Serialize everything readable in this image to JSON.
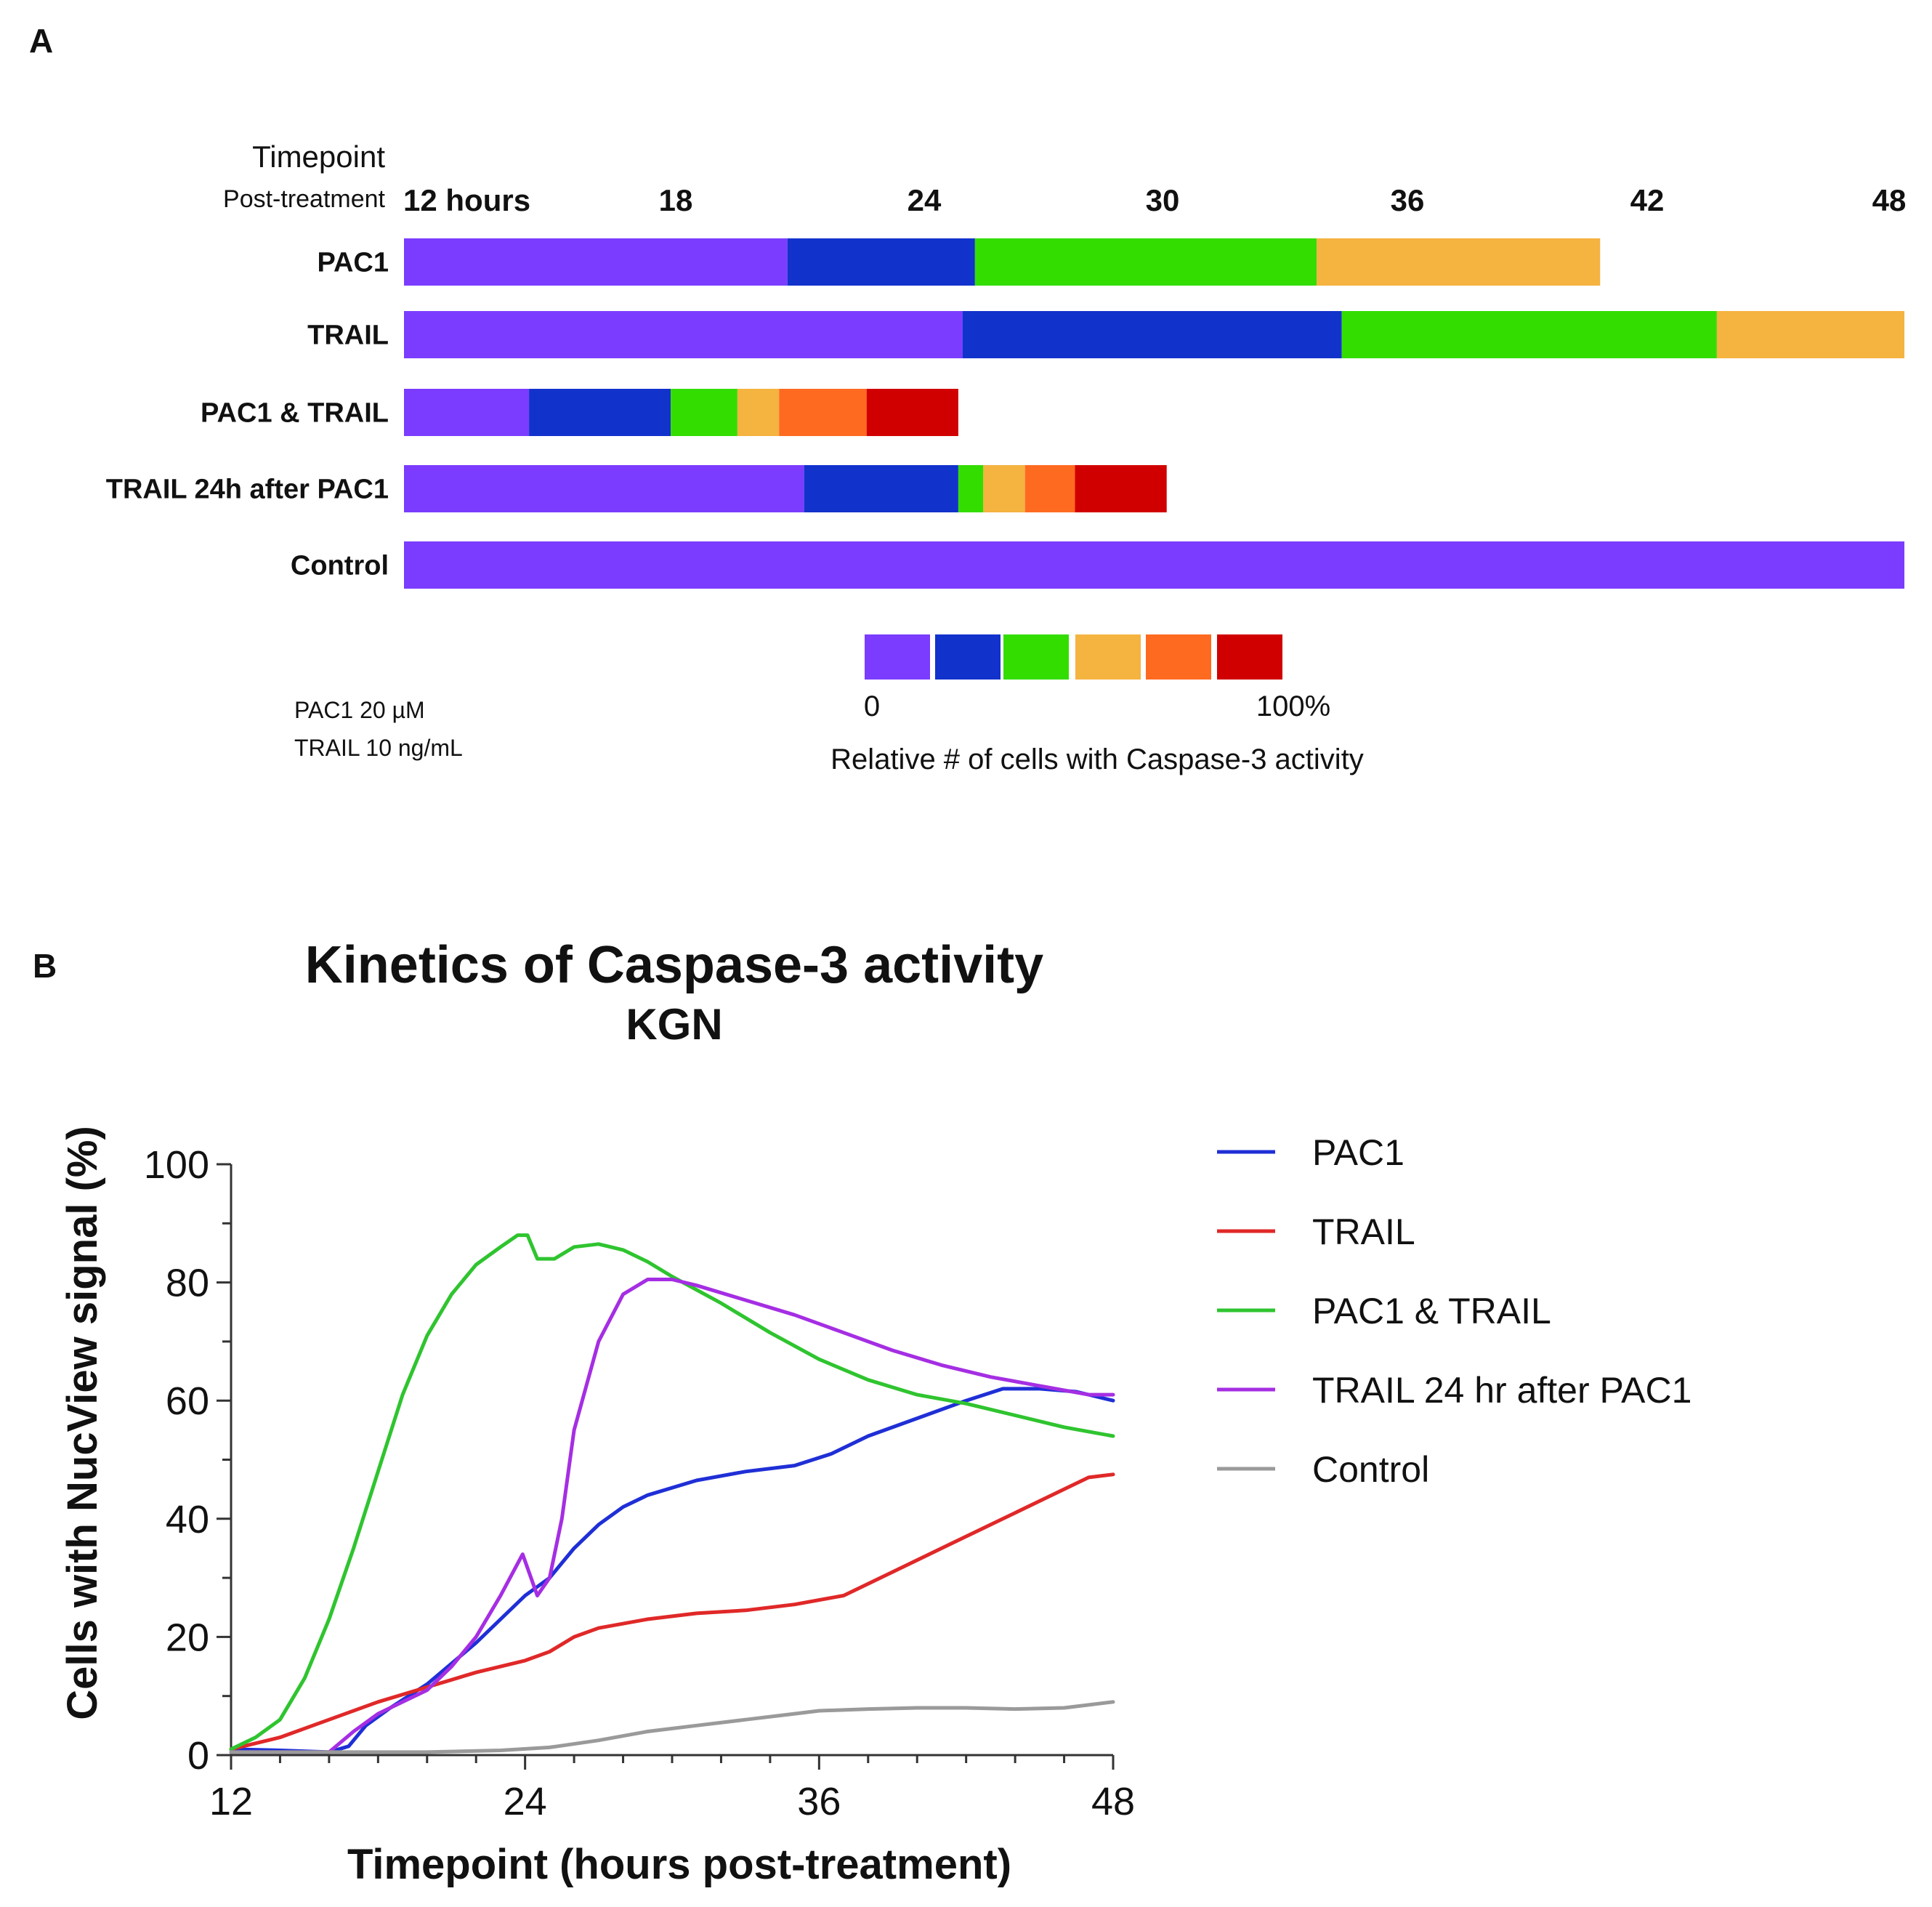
{
  "panel_a": {
    "letter": "A",
    "timepoint_label": "Timepoint",
    "post_treatment_label": "Post-treatment",
    "first_tick_label": "12 hours",
    "tick_labels": [
      "18",
      "24",
      "30",
      "36",
      "42",
      "48"
    ],
    "scale_min_label": "0",
    "scale_max_label": "100%",
    "scale_caption": "Relative # of cells with Caspase-3 activity",
    "dose_pac1": "PAC1 20 µM",
    "dose_trail": "TRAIL 10 ng/mL",
    "palette": [
      "#7b3cff",
      "#1232cc",
      "#33dd00",
      "#f5b340",
      "#ff6a21",
      "#d10000"
    ]
  },
  "panel_b": {
    "letter": "B",
    "title": "Kinetics of Caspase-3 activity",
    "subtitle": "KGN"
  },
  "chart_data": [
    {
      "type": "bar",
      "orientation": "horizontal-stacked",
      "title": "Timepoint Post-treatment",
      "x_unit": "hours post-treatment",
      "xlim": [
        12,
        48
      ],
      "x_ticks": [
        12,
        18,
        24,
        30,
        36,
        42,
        48
      ],
      "color_scale": {
        "min": "0",
        "max": "100%",
        "label": "Relative # of cells with Caspase-3 activity"
      },
      "rows": [
        {
          "label": "PAC1",
          "segments": [
            {
              "from": 12,
              "to": 21.2,
              "level": 0
            },
            {
              "from": 21.2,
              "to": 25.7,
              "level": 1
            },
            {
              "from": 25.7,
              "to": 33.9,
              "level": 2
            },
            {
              "from": 33.9,
              "to": 40.7,
              "level": 3
            }
          ]
        },
        {
          "label": "TRAIL",
          "segments": [
            {
              "from": 12,
              "to": 25.4,
              "level": 0
            },
            {
              "from": 25.4,
              "to": 34.5,
              "level": 1
            },
            {
              "from": 34.5,
              "to": 43.5,
              "level": 2
            },
            {
              "from": 43.5,
              "to": 48,
              "level": 3
            }
          ]
        },
        {
          "label": "PAC1 & TRAIL",
          "segments": [
            {
              "from": 12,
              "to": 15,
              "level": 0
            },
            {
              "from": 15,
              "to": 18.4,
              "level": 1
            },
            {
              "from": 18.4,
              "to": 20,
              "level": 2
            },
            {
              "from": 20,
              "to": 21,
              "level": 3
            },
            {
              "from": 21,
              "to": 23.1,
              "level": 4
            },
            {
              "from": 23.1,
              "to": 25.3,
              "level": 5
            }
          ]
        },
        {
          "label": "TRAIL 24h after PAC1",
          "segments": [
            {
              "from": 12,
              "to": 21.6,
              "level": 0
            },
            {
              "from": 21.6,
              "to": 25.3,
              "level": 1
            },
            {
              "from": 25.3,
              "to": 25.9,
              "level": 2
            },
            {
              "from": 25.9,
              "to": 26.9,
              "level": 3
            },
            {
              "from": 26.9,
              "to": 28.1,
              "level": 4
            },
            {
              "from": 28.1,
              "to": 30.3,
              "level": 5
            }
          ]
        },
        {
          "label": "Control",
          "segments": [
            {
              "from": 12,
              "to": 48,
              "level": 0
            }
          ]
        }
      ]
    },
    {
      "type": "line",
      "title": "Kinetics of Caspase-3 activity",
      "subtitle": "KGN",
      "xlabel": "Timepoint (hours post-treatment)",
      "ylabel": "Cells with NucView signal (%)",
      "xlim": [
        12,
        48
      ],
      "ylim": [
        0,
        100
      ],
      "x_ticks": [
        12,
        24,
        36,
        48
      ],
      "y_ticks": [
        0,
        20,
        40,
        60,
        80,
        100
      ],
      "legend_position": "right",
      "series": [
        {
          "name": "PAC1",
          "color": "#1f2fd6",
          "points": [
            [
              12,
              1
            ],
            [
              14,
              0.8
            ],
            [
              16,
              0.5
            ],
            [
              16.8,
              1.5
            ],
            [
              17.5,
              5
            ],
            [
              18.5,
              8
            ],
            [
              20,
              12
            ],
            [
              22,
              19
            ],
            [
              24,
              27
            ],
            [
              25,
              30
            ],
            [
              26,
              35
            ],
            [
              27,
              39
            ],
            [
              28,
              42
            ],
            [
              29,
              44
            ],
            [
              31,
              46.5
            ],
            [
              33,
              48
            ],
            [
              35,
              49
            ],
            [
              36.5,
              51
            ],
            [
              38,
              54
            ],
            [
              40,
              57
            ],
            [
              42,
              60
            ],
            [
              43.5,
              62
            ],
            [
              45,
              62
            ],
            [
              46.5,
              61.5
            ],
            [
              48,
              60
            ]
          ]
        },
        {
          "name": "TRAIL",
          "color": "#e02828",
          "points": [
            [
              12,
              1
            ],
            [
              14,
              3
            ],
            [
              16,
              6
            ],
            [
              18,
              9
            ],
            [
              20,
              11.5
            ],
            [
              22,
              14
            ],
            [
              24,
              16
            ],
            [
              25,
              17.5
            ],
            [
              26,
              20
            ],
            [
              27,
              21.5
            ],
            [
              29,
              23
            ],
            [
              31,
              24
            ],
            [
              33,
              24.5
            ],
            [
              35,
              25.5
            ],
            [
              37,
              27
            ],
            [
              39,
              31
            ],
            [
              41,
              35
            ],
            [
              43,
              39
            ],
            [
              45,
              43
            ],
            [
              47,
              47
            ],
            [
              48,
              47.5
            ]
          ]
        },
        {
          "name": "PAC1 & TRAIL",
          "color": "#2fc42f",
          "points": [
            [
              12,
              1
            ],
            [
              13,
              3
            ],
            [
              14,
              6
            ],
            [
              15,
              13
            ],
            [
              16,
              23
            ],
            [
              17,
              35
            ],
            [
              18,
              48
            ],
            [
              19,
              61
            ],
            [
              20,
              71
            ],
            [
              21,
              78
            ],
            [
              22,
              83
            ],
            [
              23,
              86
            ],
            [
              23.7,
              88
            ],
            [
              24.1,
              88
            ],
            [
              24.5,
              84
            ],
            [
              25.2,
              84
            ],
            [
              26,
              86
            ],
            [
              27,
              86.5
            ],
            [
              28,
              85.5
            ],
            [
              29,
              83.5
            ],
            [
              30,
              81
            ],
            [
              32,
              76.5
            ],
            [
              34,
              71.5
            ],
            [
              36,
              67
            ],
            [
              38,
              63.5
            ],
            [
              40,
              61
            ],
            [
              42,
              59.5
            ],
            [
              44,
              57.5
            ],
            [
              46,
              55.5
            ],
            [
              48,
              54
            ]
          ]
        },
        {
          "name": "TRAIL 24 hr after PAC1",
          "color": "#a52ee3",
          "points": [
            [
              12,
              0.5
            ],
            [
              14,
              0.5
            ],
            [
              16,
              0.5
            ],
            [
              17,
              4
            ],
            [
              18,
              7
            ],
            [
              19,
              9
            ],
            [
              20,
              11
            ],
            [
              21,
              15
            ],
            [
              22,
              20
            ],
            [
              23,
              27
            ],
            [
              23.9,
              34
            ],
            [
              24.5,
              27
            ],
            [
              25,
              30
            ],
            [
              25.5,
              40
            ],
            [
              26,
              55
            ],
            [
              27,
              70
            ],
            [
              28,
              78
            ],
            [
              29,
              80.5
            ],
            [
              30,
              80.5
            ],
            [
              31,
              79.5
            ],
            [
              33,
              77
            ],
            [
              35,
              74.5
            ],
            [
              37,
              71.5
            ],
            [
              39,
              68.5
            ],
            [
              41,
              66
            ],
            [
              43,
              64
            ],
            [
              45,
              62.5
            ],
            [
              47,
              61
            ],
            [
              48,
              61
            ]
          ]
        },
        {
          "name": "Control",
          "color": "#9a9a9a",
          "points": [
            [
              12,
              0.5
            ],
            [
              16,
              0.5
            ],
            [
              20,
              0.5
            ],
            [
              23,
              0.8
            ],
            [
              25,
              1.3
            ],
            [
              27,
              2.5
            ],
            [
              29,
              4
            ],
            [
              31,
              5
            ],
            [
              33,
              6
            ],
            [
              35,
              7
            ],
            [
              36,
              7.5
            ],
            [
              38,
              7.8
            ],
            [
              40,
              8
            ],
            [
              42,
              8
            ],
            [
              44,
              7.8
            ],
            [
              46,
              8
            ],
            [
              48,
              9
            ]
          ]
        }
      ]
    }
  ]
}
